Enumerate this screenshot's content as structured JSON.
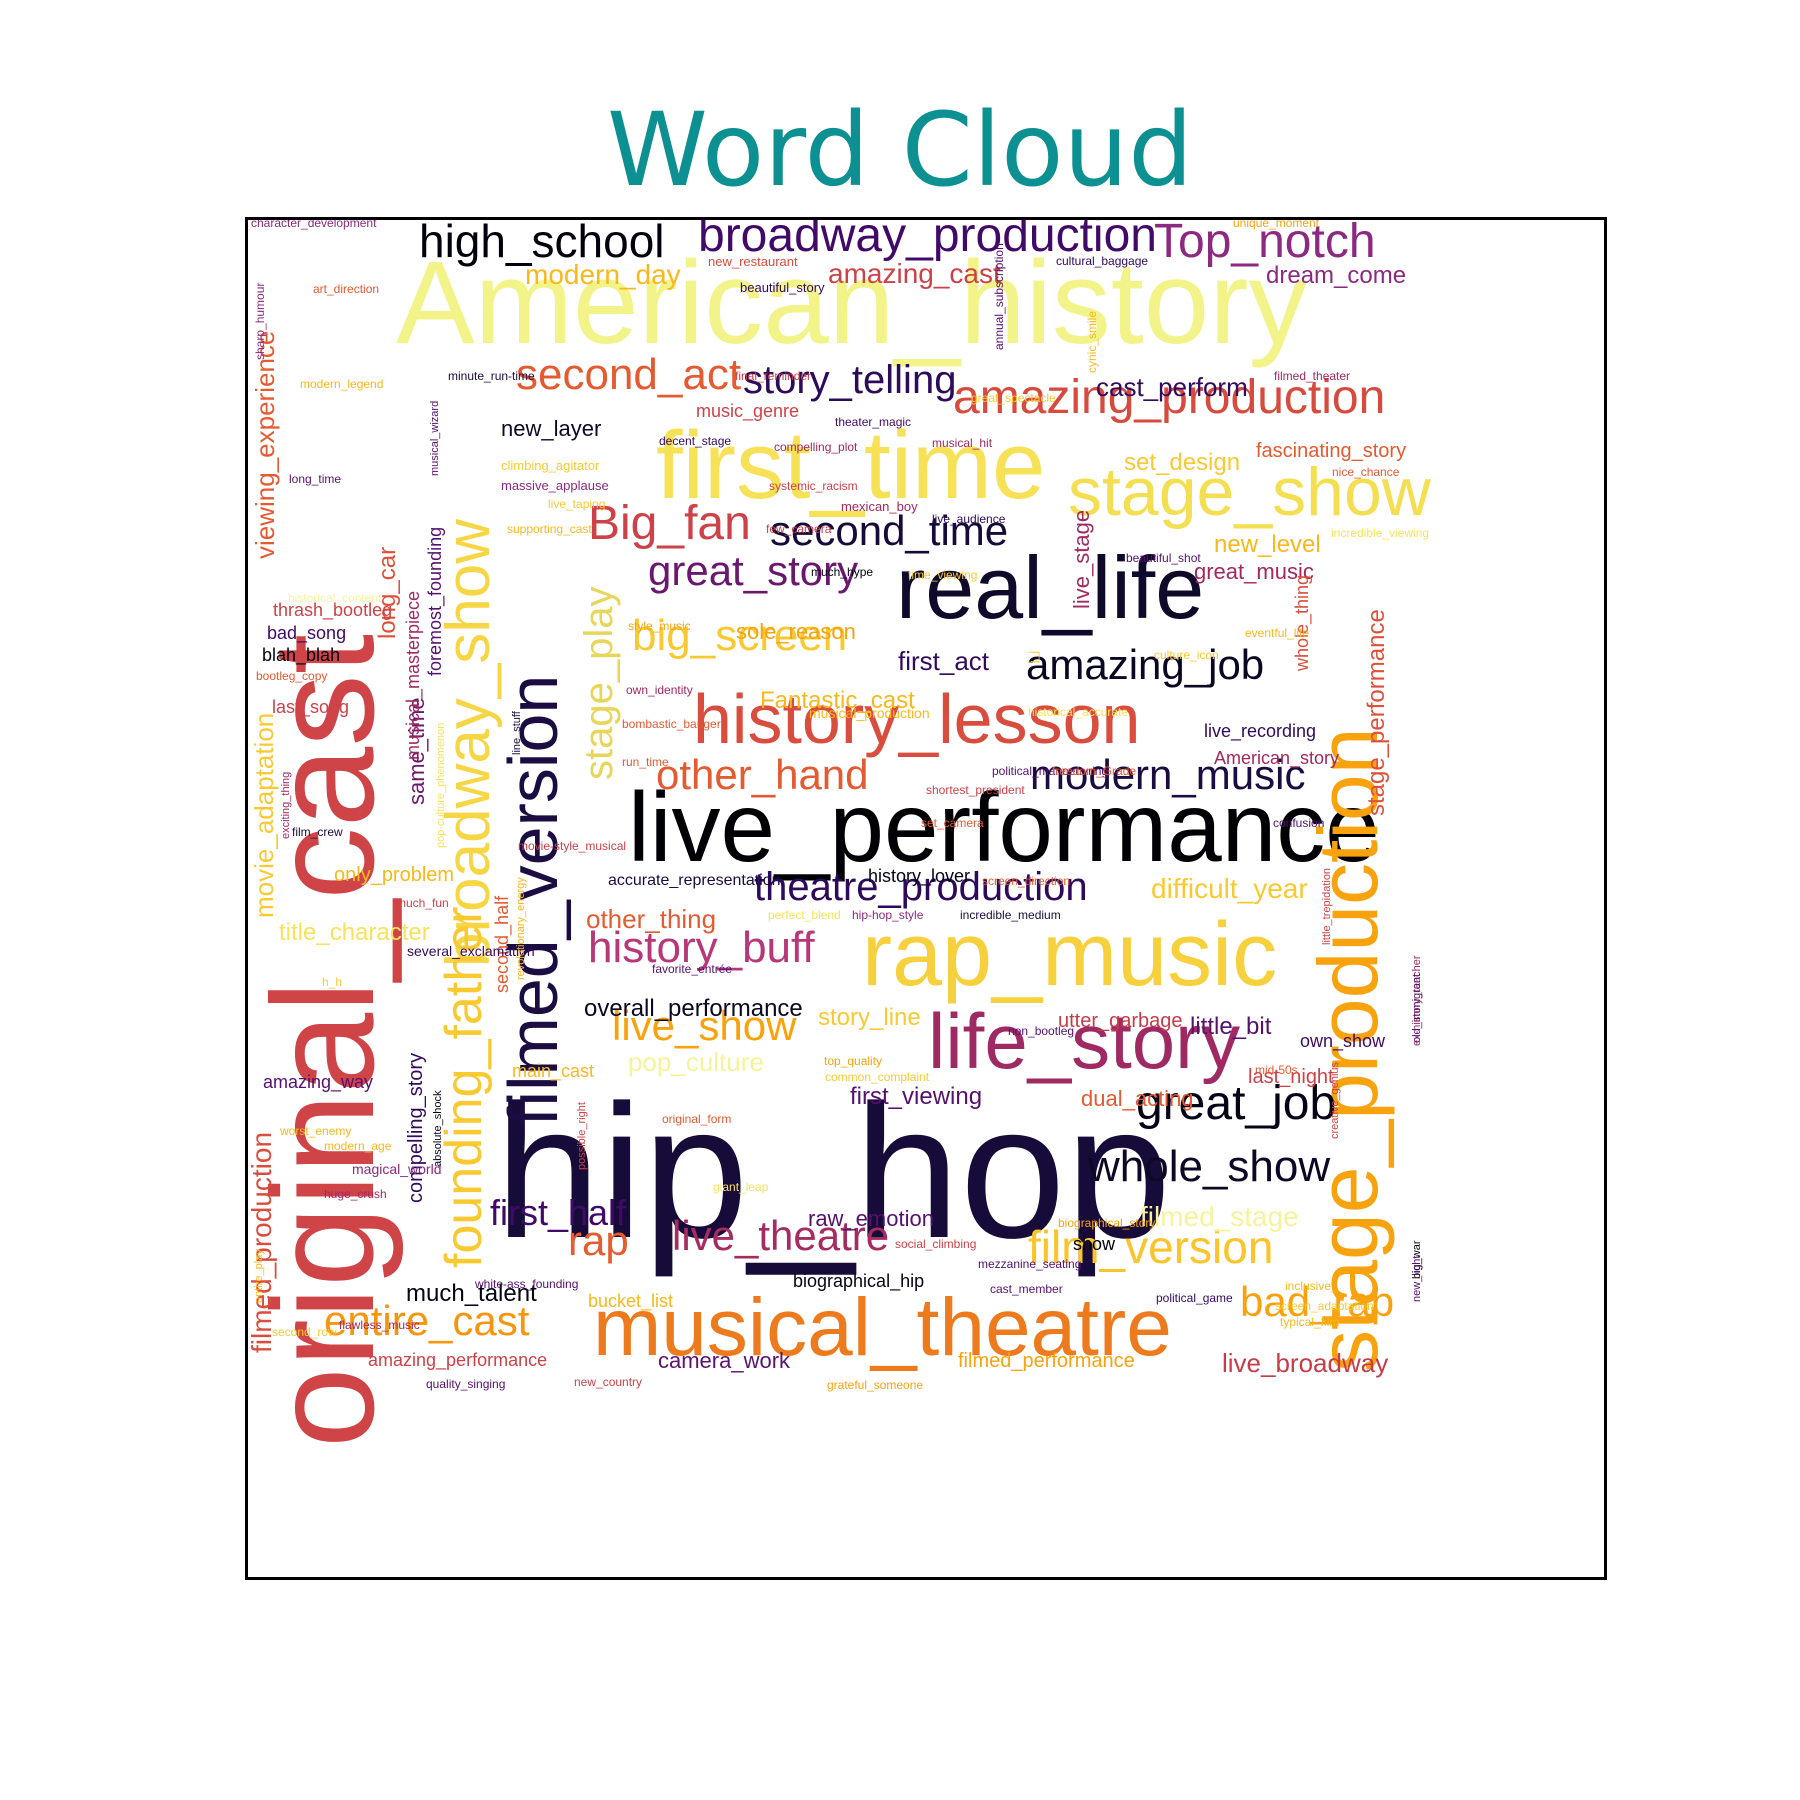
{
  "chart_data": {
    "type": "wordcloud",
    "title": "Word Cloud",
    "words": [
      {
        "text": "original_cast",
        "color": "#cf4446"
      },
      {
        "text": "American_history",
        "color": "#f2f48a"
      },
      {
        "text": "hip_hop",
        "color": "#160b39"
      },
      {
        "text": "live_performance",
        "color": "#000004"
      },
      {
        "text": "stage_production",
        "color": "#f8a30e"
      },
      {
        "text": "filmed_version",
        "color": "#1b0c41"
      },
      {
        "text": "first_time",
        "color": "#f7e156"
      },
      {
        "text": "real_life",
        "color": "#0f0a2a"
      },
      {
        "text": "rap_music",
        "color": "#f7d13d"
      },
      {
        "text": "musical_theatre",
        "color": "#ee7a1e"
      },
      {
        "text": "life_story",
        "color": "#9f2a63"
      },
      {
        "text": "history_lesson",
        "color": "#d84d3d"
      },
      {
        "text": "broadway_show",
        "color": "#f6d645"
      },
      {
        "text": "founding_father",
        "color": "#f8c931"
      },
      {
        "text": "stage_show",
        "color": "#f4df53"
      },
      {
        "text": "amazing_production",
        "color": "#d74a3e"
      },
      {
        "text": "broadway_production",
        "color": "#420a68"
      },
      {
        "text": "Top_notch",
        "color": "#8c2981"
      },
      {
        "text": "high_school",
        "color": "#02020c"
      },
      {
        "text": "second_act",
        "color": "#e45a31"
      },
      {
        "text": "story_telling",
        "color": "#2c0b5a"
      },
      {
        "text": "Big_fan",
        "color": "#cc4248"
      },
      {
        "text": "second_time",
        "color": "#160b39"
      },
      {
        "text": "great_story",
        "color": "#6a176e"
      },
      {
        "text": "big_screen",
        "color": "#f9c932"
      },
      {
        "text": "stage_play",
        "color": "#e8d65a"
      },
      {
        "text": "amazing_job",
        "color": "#0a0722"
      },
      {
        "text": "modern_music",
        "color": "#1b0c41"
      },
      {
        "text": "other_hand",
        "color": "#e45a31"
      },
      {
        "text": "theatre_production",
        "color": "#2e0a5c"
      },
      {
        "text": "great_job",
        "color": "#050416"
      },
      {
        "text": "whole_show",
        "color": "#0c0826"
      },
      {
        "text": "history_buff",
        "color": "#b73779"
      },
      {
        "text": "live_show",
        "color": "#f9a20d"
      },
      {
        "text": "film_version",
        "color": "#fac42a"
      },
      {
        "text": "live_theatre",
        "color": "#a52c60"
      },
      {
        "text": "entire_cast",
        "color": "#f8950f"
      },
      {
        "text": "bad_rap",
        "color": "#f9a20d"
      },
      {
        "text": "rap",
        "color": "#e55c30"
      },
      {
        "text": "first_half",
        "color": "#420a68"
      },
      {
        "text": "viewing_experience",
        "color": "#e45a31"
      },
      {
        "text": "movie_adaptation",
        "color": "#f9c932"
      },
      {
        "text": "filmed_production",
        "color": "#d84d3d"
      },
      {
        "text": "stage_performance",
        "color": "#dd513a"
      },
      {
        "text": "modern_day",
        "color": "#f9b81b"
      },
      {
        "text": "amazing_cast",
        "color": "#cc4248"
      },
      {
        "text": "dream_come",
        "color": "#8c2981"
      },
      {
        "text": "cast_perform",
        "color": "#320a5e"
      },
      {
        "text": "new_layer",
        "color": "#0c0826"
      },
      {
        "text": "set_design",
        "color": "#f9c932"
      },
      {
        "text": "fascinating_story",
        "color": "#e45a31"
      },
      {
        "text": "new_level",
        "color": "#f9b81b"
      },
      {
        "text": "great_music",
        "color": "#a2285f"
      },
      {
        "text": "sole_reason",
        "color": "#f8a30e"
      },
      {
        "text": "first_act",
        "color": "#320a5e"
      },
      {
        "text": "Fantastic_cast",
        "color": "#f9b81b"
      },
      {
        "text": "same_time",
        "color": "#6a176e"
      },
      {
        "text": "long_car",
        "color": "#dd513a"
      },
      {
        "text": "live_stage",
        "color": "#9f2a63"
      },
      {
        "text": "whole_thing",
        "color": "#d84d3d"
      },
      {
        "text": "musical_masterpiece",
        "color": "#a2285f"
      },
      {
        "text": "foremost_founding",
        "color": "#56106e"
      },
      {
        "text": "only_problem",
        "color": "#f9b81b"
      },
      {
        "text": "title_character",
        "color": "#f8e25c"
      },
      {
        "text": "overall_performance",
        "color": "#0a0722"
      },
      {
        "text": "story_line",
        "color": "#f8c931"
      },
      {
        "text": "pop_culture",
        "color": "#f7f39b"
      },
      {
        "text": "first_viewing",
        "color": "#56106e"
      },
      {
        "text": "dual_acting",
        "color": "#e45a31"
      },
      {
        "text": "little_bit",
        "color": "#56106e"
      },
      {
        "text": "utter_garbage",
        "color": "#c53c4a"
      },
      {
        "text": "last_night",
        "color": "#cc4248"
      },
      {
        "text": "difficult_year",
        "color": "#f9c932"
      },
      {
        "text": "other_thing",
        "color": "#e55c30"
      },
      {
        "text": "filmed_stage",
        "color": "#f7f39b"
      },
      {
        "text": "raw_emotion",
        "color": "#56106e"
      },
      {
        "text": "much_talent",
        "color": "#050416"
      },
      {
        "text": "compelling_story",
        "color": "#320a5e"
      },
      {
        "text": "camera_work",
        "color": "#5c126e"
      },
      {
        "text": "amazing_performance",
        "color": "#cc4248"
      },
      {
        "text": "filmed_performance",
        "color": "#f9a20d"
      },
      {
        "text": "live_broadway",
        "color": "#c53c4a"
      },
      {
        "text": "bucket_list",
        "color": "#f9b81b"
      },
      {
        "text": "second_half",
        "color": "#e45a31"
      },
      {
        "text": "accurate_representation",
        "color": "#1b0c41"
      },
      {
        "text": "music_genre",
        "color": "#cc4248"
      },
      {
        "text": "American_story",
        "color": "#a2285f"
      },
      {
        "text": "live_recording",
        "color": "#320a5e"
      },
      {
        "text": "amazing_way",
        "color": "#56106e"
      },
      {
        "text": "thrash_bootleg",
        "color": "#cc4248"
      },
      {
        "text": "bad_song",
        "color": "#420a68"
      },
      {
        "text": "blah_blah",
        "color": "#050416"
      },
      {
        "text": "last_song",
        "color": "#cc4248"
      },
      {
        "text": "history_lover",
        "color": "#050416"
      },
      {
        "text": "main_cast",
        "color": "#f9b81b"
      },
      {
        "text": "own_show",
        "color": "#420a68"
      },
      {
        "text": "show",
        "color": "#000004"
      },
      {
        "text": "biographical_hip",
        "color": "#050416"
      },
      {
        "text": "character_development",
        "color": "#8c2981"
      },
      {
        "text": "unique_moment",
        "color": "#f8a30e"
      },
      {
        "text": "new_restaurant",
        "color": "#d84d3d"
      },
      {
        "text": "cultural_baggage",
        "color": "#2e0a5c"
      },
      {
        "text": "beautiful_story",
        "color": "#320a5e"
      },
      {
        "text": "art_direction",
        "color": "#e45a31"
      },
      {
        "text": "sharp_humour",
        "color": "#8c2981"
      },
      {
        "text": "annual_subscription",
        "color": "#56106e"
      },
      {
        "text": "cynic_smile",
        "color": "#f9b81b"
      },
      {
        "text": "minute_run-time",
        "color": "#1b0c41"
      },
      {
        "text": "final_reminder",
        "color": "#cc4248"
      },
      {
        "text": "filmed_theater",
        "color": "#a2285f"
      },
      {
        "text": "modern_legend",
        "color": "#f9b81b"
      },
      {
        "text": "musical_wizard",
        "color": "#56106e"
      },
      {
        "text": "great_spectacle",
        "color": "#f9c932"
      },
      {
        "text": "decent_stage",
        "color": "#320a5e"
      },
      {
        "text": "theater_magic",
        "color": "#420a68"
      },
      {
        "text": "compelling_plot",
        "color": "#a2285f"
      },
      {
        "text": "musical_hit",
        "color": "#a2285f"
      },
      {
        "text": "climbing_agitator",
        "color": "#f9c932"
      },
      {
        "text": "nice_chance",
        "color": "#e45a31"
      },
      {
        "text": "massive_applause",
        "color": "#8c2981"
      },
      {
        "text": "systemic_racism",
        "color": "#cc4248"
      },
      {
        "text": "long_time",
        "color": "#56106e"
      },
      {
        "text": "live_taping",
        "color": "#f9c932"
      },
      {
        "text": "mexican_boy",
        "color": "#a2285f"
      },
      {
        "text": "live_audience",
        "color": "#2e0a5c"
      },
      {
        "text": "supporting_cast",
        "color": "#f9b81b"
      },
      {
        "text": "few_camera",
        "color": "#cc4248"
      },
      {
        "text": "incredible_viewing",
        "color": "#f8e25c"
      },
      {
        "text": "beautiful_shot",
        "color": "#56106e"
      },
      {
        "text": "much_hype",
        "color": "#050416"
      },
      {
        "text": "time_viewing",
        "color": "#f9c932"
      },
      {
        "text": "historical_content",
        "color": "#f7f39b"
      },
      {
        "text": "style_music",
        "color": "#f8a30e"
      },
      {
        "text": "culture_icon",
        "color": "#f9c932"
      },
      {
        "text": "eventful_life",
        "color": "#f9b81b"
      },
      {
        "text": "j_j",
        "color": "#f9c932"
      },
      {
        "text": "bootleg_copy",
        "color": "#e45a31"
      },
      {
        "text": "own_identity",
        "color": "#a2285f"
      },
      {
        "text": "musical_production",
        "color": "#f9b81b"
      },
      {
        "text": "historical_accurate",
        "color": "#f8e25c"
      },
      {
        "text": "bombastic_banger",
        "color": "#e45a31"
      },
      {
        "text": "run_time",
        "color": "#e45a31"
      },
      {
        "text": "line_stuff",
        "color": "#1b0c41"
      },
      {
        "text": "political_manoeuvring",
        "color": "#56106e"
      },
      {
        "text": "freedom_Grade",
        "color": "#e45a31"
      },
      {
        "text": "exciting_thing",
        "color": "#a2285f"
      },
      {
        "text": "pop-culture_phenomenon",
        "color": "#f8e25c"
      },
      {
        "text": "shortest_president",
        "color": "#cc4248"
      },
      {
        "text": "film_crew",
        "color": "#1b0c41"
      },
      {
        "text": "set_camera",
        "color": "#e45a31"
      },
      {
        "text": "confusion",
        "color": "#56106e"
      },
      {
        "text": "movie-style_musical",
        "color": "#cc4248"
      },
      {
        "text": "screen_direction",
        "color": "#e45a31"
      },
      {
        "text": "much_fun",
        "color": "#cc4248"
      },
      {
        "text": "hip-hop_style",
        "color": "#8c2981"
      },
      {
        "text": "perfect_blend",
        "color": "#f8e25c"
      },
      {
        "text": "incredible_medium",
        "color": "#1b0c41"
      },
      {
        "text": "little_trepidation",
        "color": "#cc4248"
      },
      {
        "text": "ex-history_teacher",
        "color": "#a2285f"
      },
      {
        "text": "several_exclamation",
        "color": "#320a5e"
      },
      {
        "text": "revolutionary_energy",
        "color": "#f9b81b"
      },
      {
        "text": "favorite_entrée",
        "color": "#56106e"
      },
      {
        "text": "h_h",
        "color": "#f9c932"
      },
      {
        "text": "old_immigrant",
        "color": "#56106e"
      },
      {
        "text": "non_bootleg",
        "color": "#56106e"
      },
      {
        "text": "top_quality",
        "color": "#f8a30e"
      },
      {
        "text": "common_complaint",
        "color": "#f9c932"
      },
      {
        "text": "mid-50s",
        "color": "#e45a31"
      },
      {
        "text": "original_form",
        "color": "#e45a31"
      },
      {
        "text": "modern_age",
        "color": "#f9b81b"
      },
      {
        "text": "worst_enemy",
        "color": "#f9b81b"
      },
      {
        "text": "possible_right",
        "color": "#cc4248"
      },
      {
        "text": "absolute_shock",
        "color": "#050416"
      },
      {
        "text": "giant_leap",
        "color": "#f8e25c"
      },
      {
        "text": "creative_genius",
        "color": "#cc4248"
      },
      {
        "text": "magical_world",
        "color": "#8c2981"
      },
      {
        "text": "huge_crush",
        "color": "#a2285f"
      },
      {
        "text": "entire_play",
        "color": "#f9b81b"
      },
      {
        "text": "biographical_story",
        "color": "#f9a20d"
      },
      {
        "text": "social_climbing",
        "color": "#cc4248"
      },
      {
        "text": "mezzanine_seating",
        "color": "#56106e"
      },
      {
        "text": "cast_member",
        "color": "#56106e"
      },
      {
        "text": "big_war",
        "color": "#050416"
      },
      {
        "text": "inclusive_",
        "color": "#f9b81b"
      },
      {
        "text": "white-ass_founding",
        "color": "#56106e"
      },
      {
        "text": "new_light",
        "color": "#56106e"
      },
      {
        "text": "political_game",
        "color": "#320a5e"
      },
      {
        "text": "screen_adaptation",
        "color": "#f9c932"
      },
      {
        "text": "typical_film",
        "color": "#f9b81b"
      },
      {
        "text": "second_row",
        "color": "#f9c932"
      },
      {
        "text": "flawless_music",
        "color": "#a2285f"
      },
      {
        "text": "quality_singing",
        "color": "#56106e"
      },
      {
        "text": "new_country",
        "color": "#cc4248"
      },
      {
        "text": "grateful_someone",
        "color": "#f9a20d"
      },
      {
        "text": "elaborate_movie",
        "color": "#56106e"
      },
      {
        "text": "top_line",
        "color": "#e45a31"
      },
      {
        "text": "powerful_film",
        "color": "#050416"
      },
      {
        "text": "engaging_way",
        "color": "#f9b81b"
      },
      {
        "text": "likely_forgot",
        "color": "#050416"
      },
      {
        "text": "spectacular_film",
        "color": "#f9b81b"
      }
    ]
  }
}
